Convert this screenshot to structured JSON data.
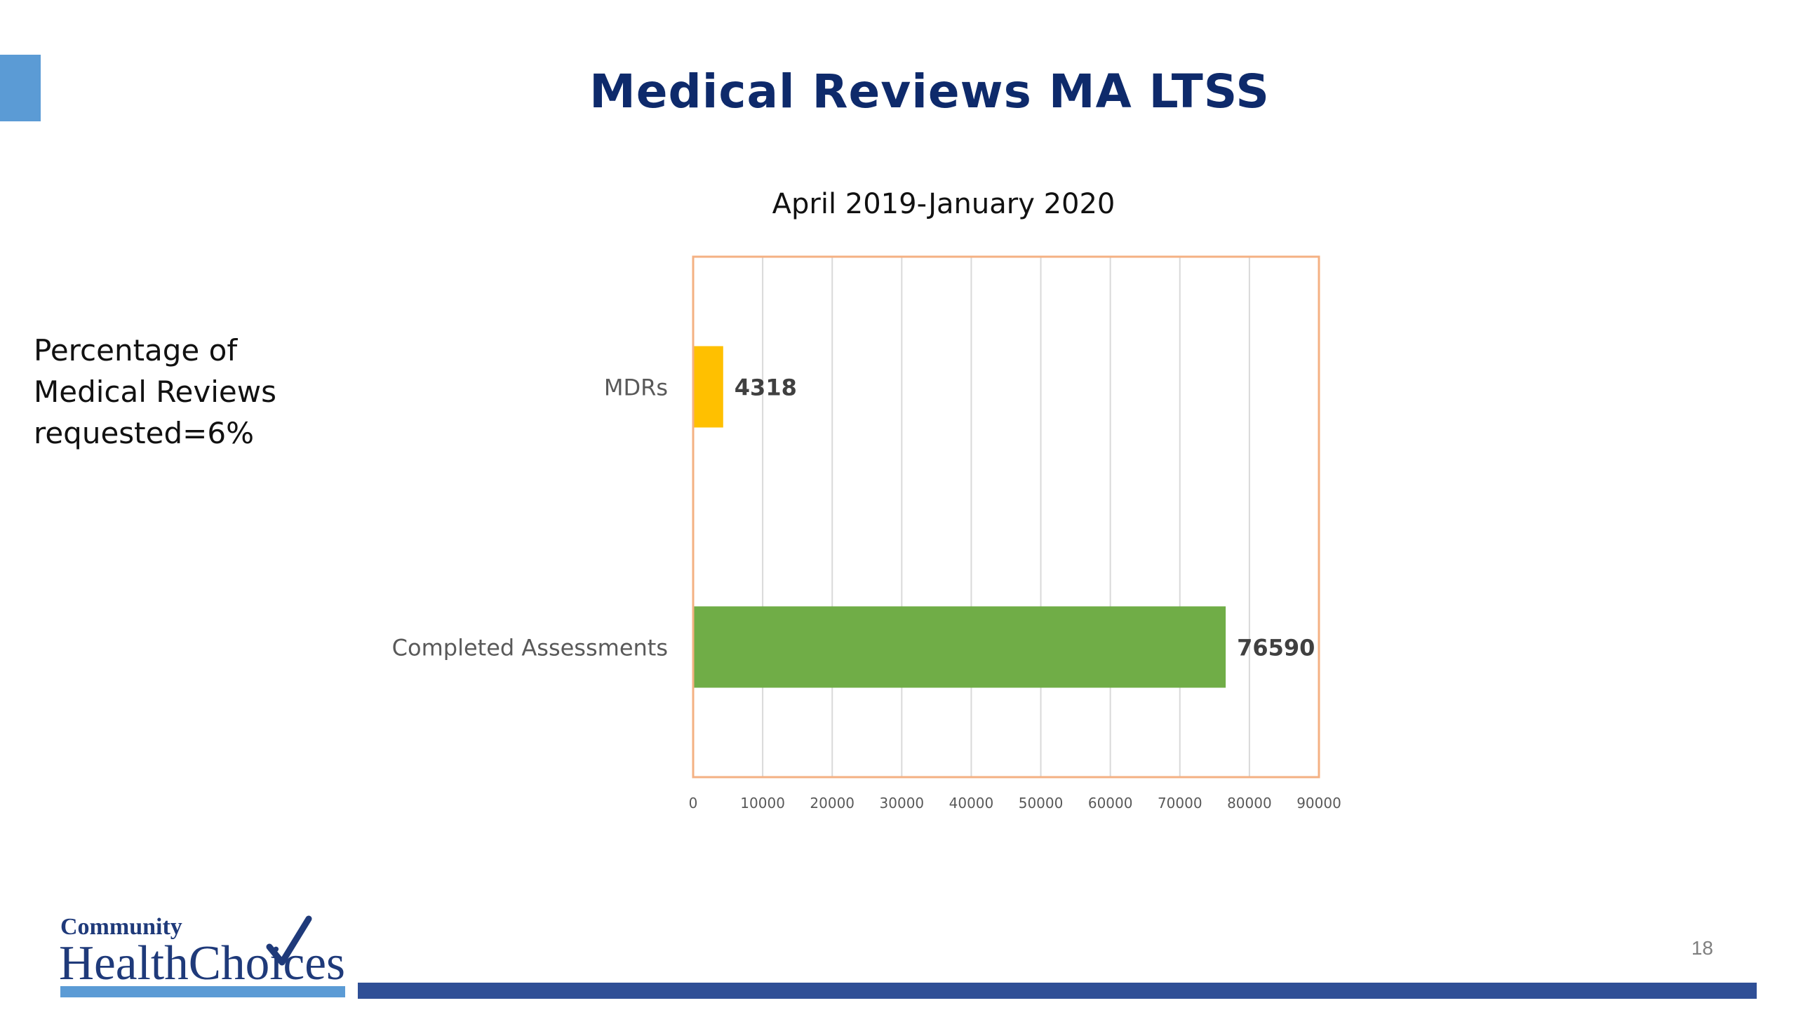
{
  "slide": {
    "title": "Medical Reviews MA LTSS",
    "side_note": [
      "Percentage of",
      "Medical Reviews",
      "requested=6%"
    ],
    "page_number": "18"
  },
  "logo": {
    "line1": "Community",
    "line2": "HealthChoices"
  },
  "colors": {
    "title": "#0e2a6b",
    "accent": "#5b9bd5",
    "footer_bar": "#2f4f96",
    "plot_border": "#f4b183"
  },
  "chart_data": {
    "type": "bar",
    "orientation": "horizontal",
    "title": "April 2019-January 2020",
    "categories": [
      "MDRs",
      "Completed Assessments"
    ],
    "values": [
      4318,
      76590
    ],
    "bar_colors": [
      "#ffc000",
      "#70ad47"
    ],
    "data_labels": [
      "4318",
      "76590"
    ],
    "xlim": [
      0,
      90000
    ],
    "x_ticks": [
      0,
      10000,
      20000,
      30000,
      40000,
      50000,
      60000,
      70000,
      80000,
      90000
    ],
    "x_tick_labels": [
      "0",
      "10000",
      "20000",
      "30000",
      "40000",
      "50000",
      "60000",
      "70000",
      "80000",
      "90000"
    ],
    "grid": true,
    "legend": "none"
  }
}
